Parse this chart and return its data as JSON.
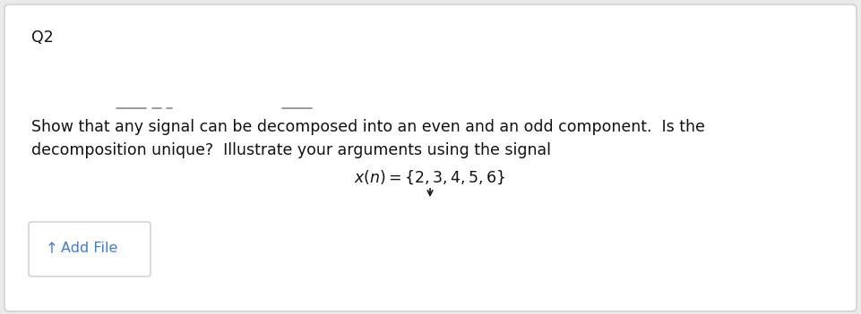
{
  "bg_color": "#ebebeb",
  "card_color": "#ffffff",
  "card_border_color": "#cccccc",
  "title_text": "Q2",
  "title_fontsize": 12.5,
  "title_color": "#111111",
  "body_line1": "Show that any signal can be decomposed into an even and an odd component.  Is the",
  "body_line2": "decomposition unique?  Illustrate your arguments using the signal",
  "body_fontsize": 12.5,
  "body_color": "#111111",
  "math_text": "$x(n) = \\{2, 3, 4, 5, 6\\}$",
  "math_fontsize": 12.5,
  "arrow_color": "#111111",
  "button_border_color": "#cccccc",
  "button_text": "Add File",
  "button_text_color": "#3d7fd4",
  "button_fontsize": 11.5,
  "underline_color": "#888888",
  "underline_lw": 1.2
}
